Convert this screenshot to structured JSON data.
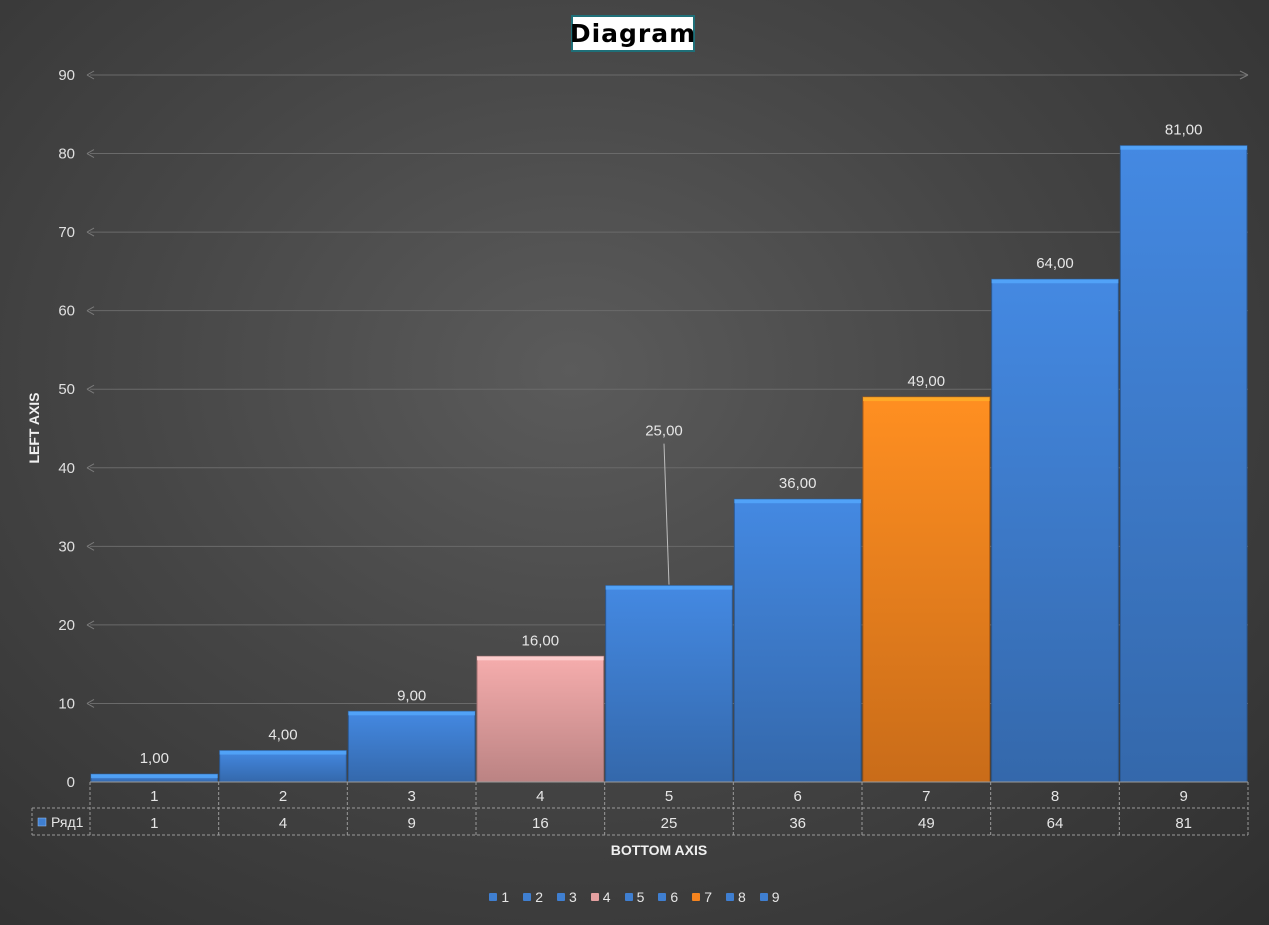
{
  "chart_data": {
    "type": "bar",
    "title": "Diagram",
    "xlabel": "BOTTOM AXIS",
    "ylabel": "LEFT AXIS",
    "categories": [
      "1",
      "2",
      "3",
      "4",
      "5",
      "6",
      "7",
      "8",
      "9"
    ],
    "series": [
      {
        "name": "Ряд1",
        "values": [
          1,
          4,
          9,
          16,
          25,
          36,
          49,
          64,
          81
        ]
      }
    ],
    "data_labels": [
      "1,00",
      "4,00",
      "9,00",
      "16,00",
      "25,00",
      "36,00",
      "49,00",
      "64,00",
      "81,00"
    ],
    "table_values": [
      "1",
      "4",
      "9",
      "16",
      "25",
      "36",
      "49",
      "64",
      "81"
    ],
    "bar_colors": [
      "#3f7fd1",
      "#3f7fd1",
      "#3f7fd1",
      "#e4a0a0",
      "#3f7fd1",
      "#3f7fd1",
      "#f5841f",
      "#3f7fd1",
      "#3f7fd1"
    ],
    "y_ticks": [
      "0",
      "10",
      "20",
      "30",
      "40",
      "50",
      "60",
      "70",
      "80",
      "90"
    ],
    "ylim": [
      0,
      90
    ],
    "grid": true,
    "legend_position": "bottom",
    "data_table": true
  }
}
